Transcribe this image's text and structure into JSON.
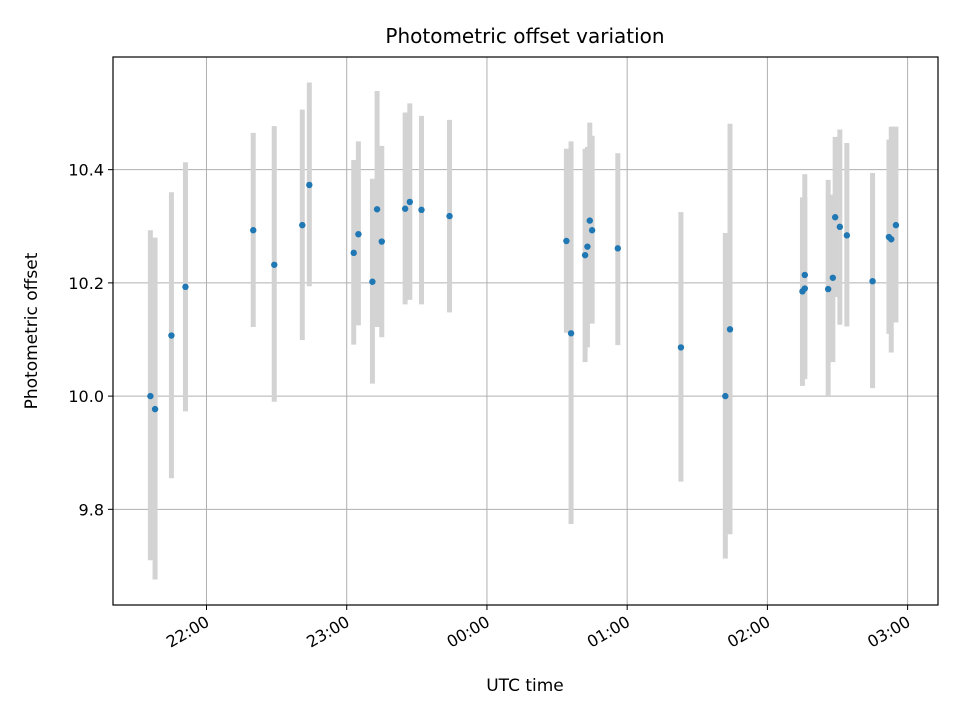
{
  "chart_data": {
    "type": "scatter",
    "title": "Photometric offset variation",
    "xlabel": "UTC time",
    "ylabel": "Photometric offset",
    "x_unit": "UTC time (HH:MM), crossing midnight",
    "x_ticks": [
      "22:00",
      "23:00",
      "00:00",
      "01:00",
      "02:00",
      "03:00"
    ],
    "y_ticks": [
      "9.8",
      "10.0",
      "10.2",
      "10.4"
    ],
    "xlim": [
      "21:20",
      "03:13"
    ],
    "ylim": [
      9.631,
      10.599
    ],
    "grid": true,
    "colors": {
      "point": "#1f77b4",
      "errorbar": "#d3d3d3",
      "grid": "#b0b0b0"
    },
    "series": [
      {
        "points": [
          {
            "t": "21:36",
            "y": 10.0,
            "lo": 9.71,
            "hi": 10.293
          },
          {
            "t": "21:38",
            "y": 9.977,
            "lo": 9.676,
            "hi": 10.28
          },
          {
            "t": "21:45",
            "y": 10.107,
            "lo": 9.855,
            "hi": 10.36
          },
          {
            "t": "21:51",
            "y": 10.193,
            "lo": 9.973,
            "hi": 10.413
          },
          {
            "t": "22:20",
            "y": 10.293,
            "lo": 10.122,
            "hi": 10.465
          },
          {
            "t": "22:29",
            "y": 10.232,
            "lo": 9.99,
            "hi": 10.477
          },
          {
            "t": "22:41",
            "y": 10.302,
            "lo": 10.099,
            "hi": 10.506
          },
          {
            "t": "22:44",
            "y": 10.373,
            "lo": 10.194,
            "hi": 10.554
          },
          {
            "t": "23:03",
            "y": 10.253,
            "lo": 10.091,
            "hi": 10.417
          },
          {
            "t": "23:05",
            "y": 10.286,
            "lo": 10.125,
            "hi": 10.45
          },
          {
            "t": "23:11",
            "y": 10.202,
            "lo": 10.022,
            "hi": 10.384
          },
          {
            "t": "23:13",
            "y": 10.33,
            "lo": 10.122,
            "hi": 10.539
          },
          {
            "t": "23:15",
            "y": 10.273,
            "lo": 10.104,
            "hi": 10.442
          },
          {
            "t": "23:25",
            "y": 10.331,
            "lo": 10.162,
            "hi": 10.501
          },
          {
            "t": "23:27",
            "y": 10.343,
            "lo": 10.17,
            "hi": 10.517
          },
          {
            "t": "23:32",
            "y": 10.329,
            "lo": 10.162,
            "hi": 10.495
          },
          {
            "t": "23:44",
            "y": 10.318,
            "lo": 10.148,
            "hi": 10.488
          },
          {
            "t": "00:34",
            "y": 10.274,
            "lo": 10.112,
            "hi": 10.437
          },
          {
            "t": "00:36",
            "y": 10.111,
            "lo": 9.774,
            "hi": 10.45
          },
          {
            "t": "00:42",
            "y": 10.249,
            "lo": 10.06,
            "hi": 10.437
          },
          {
            "t": "00:43",
            "y": 10.264,
            "lo": 10.086,
            "hi": 10.44
          },
          {
            "t": "00:44",
            "y": 10.31,
            "lo": 10.137,
            "hi": 10.483
          },
          {
            "t": "00:45",
            "y": 10.293,
            "lo": 10.128,
            "hi": 10.46
          },
          {
            "t": "00:56",
            "y": 10.261,
            "lo": 10.09,
            "hi": 10.429
          },
          {
            "t": "01:23",
            "y": 10.086,
            "lo": 9.849,
            "hi": 10.325
          },
          {
            "t": "01:42",
            "y": 10.0,
            "lo": 9.713,
            "hi": 10.288
          },
          {
            "t": "01:44",
            "y": 10.118,
            "lo": 9.756,
            "hi": 10.481
          },
          {
            "t": "02:15",
            "y": 10.185,
            "lo": 10.018,
            "hi": 10.351
          },
          {
            "t": "02:16",
            "y": 10.19,
            "lo": 10.03,
            "hi": 10.35
          },
          {
            "t": "02:16",
            "y": 10.214,
            "lo": 10.036,
            "hi": 10.392
          },
          {
            "t": "02:26",
            "y": 10.189,
            "lo": 10.0,
            "hi": 10.382
          },
          {
            "t": "02:28",
            "y": 10.209,
            "lo": 10.06,
            "hi": 10.356
          },
          {
            "t": "02:29",
            "y": 10.316,
            "lo": 10.175,
            "hi": 10.458
          },
          {
            "t": "02:31",
            "y": 10.299,
            "lo": 10.126,
            "hi": 10.471
          },
          {
            "t": "02:34",
            "y": 10.284,
            "lo": 10.123,
            "hi": 10.447
          },
          {
            "t": "02:45",
            "y": 10.203,
            "lo": 10.014,
            "hi": 10.394
          },
          {
            "t": "02:52",
            "y": 10.281,
            "lo": 10.11,
            "hi": 10.453
          },
          {
            "t": "02:53",
            "y": 10.277,
            "lo": 10.077,
            "hi": 10.476
          },
          {
            "t": "02:55",
            "y": 10.302,
            "lo": 10.13,
            "hi": 10.476
          }
        ]
      }
    ]
  }
}
